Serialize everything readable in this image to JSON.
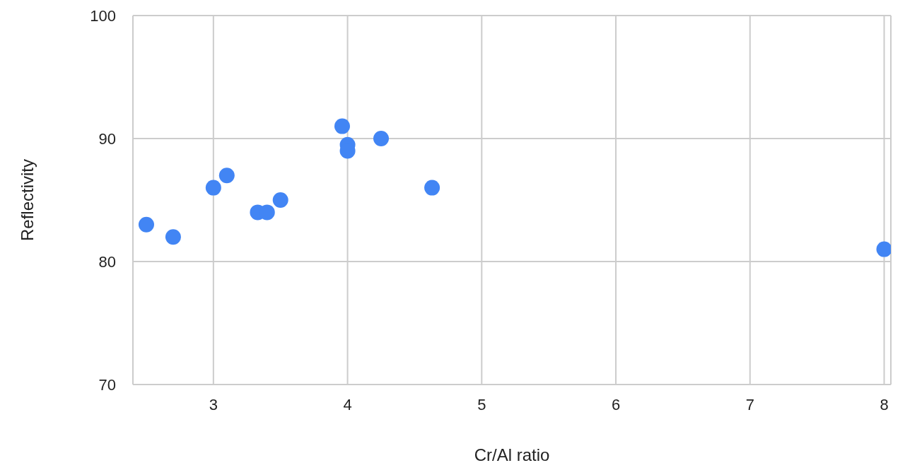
{
  "chart_data": {
    "type": "scatter",
    "xlabel": "Cr/Al ratio",
    "ylabel": "Reflectivity",
    "x": [
      2.5,
      2.7,
      3,
      3.1,
      3.33,
      3.4,
      3.5,
      3.96,
      4,
      4,
      4.25,
      4.63,
      8
    ],
    "series": [
      {
        "color": "#4285f4",
        "values": [
          83,
          82,
          86,
          87,
          84,
          84,
          85,
          91,
          89.5,
          89,
          90,
          86,
          81
        ]
      }
    ],
    "xlim": [
      2.4,
      8.05
    ],
    "xticks": [
      3,
      4,
      5,
      6,
      7,
      8
    ],
    "ylim": [
      70,
      100
    ],
    "yticks": [
      70,
      80,
      90,
      100
    ],
    "grid": true,
    "marker": "circle",
    "legend": false
  }
}
